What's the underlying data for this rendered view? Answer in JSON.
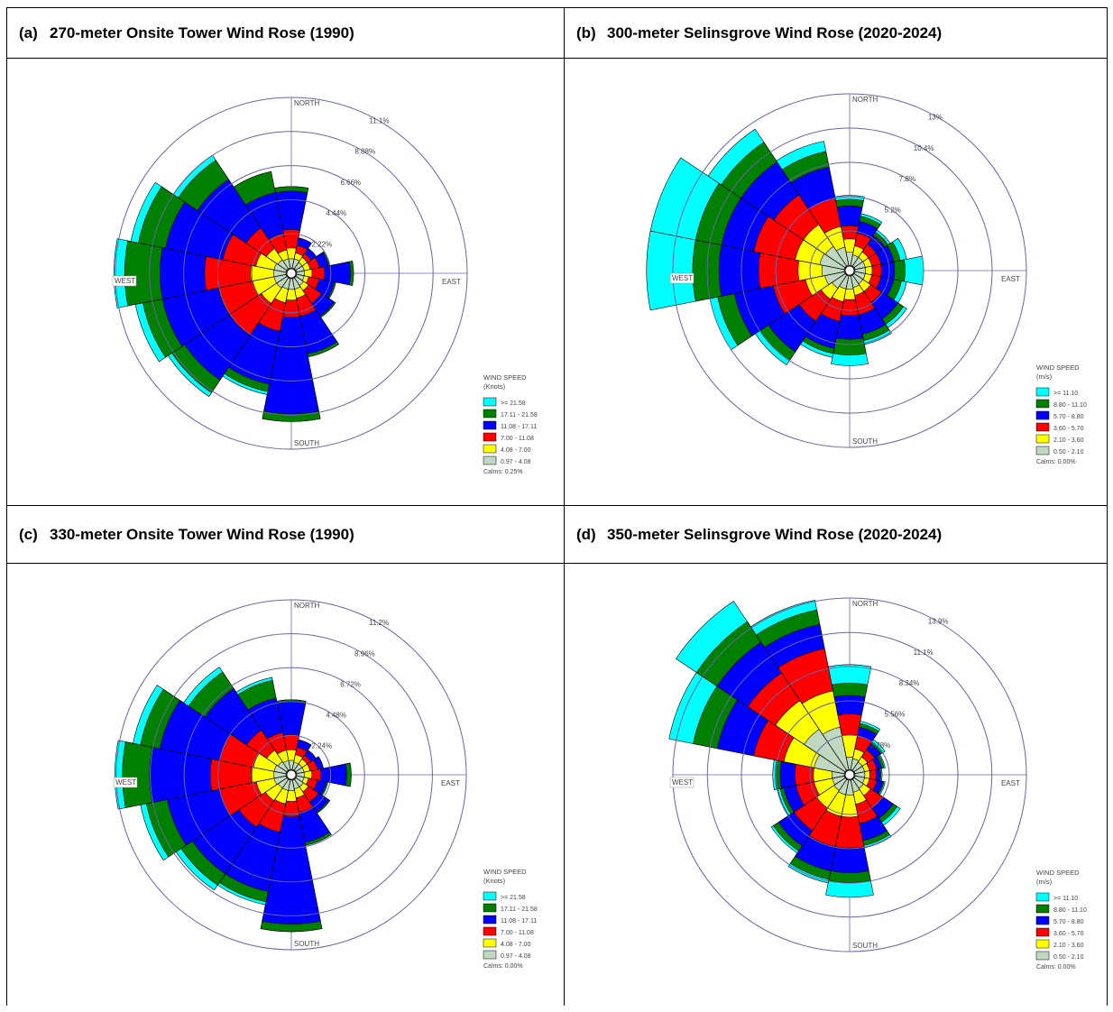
{
  "panels": [
    {
      "letter": "(a)",
      "title": "270-meter Onsite Tower Wind Rose (1990)"
    },
    {
      "letter": "(b)",
      "title": "300-meter Selinsgrove Wind Rose (2020-2024)"
    },
    {
      "letter": "(c)",
      "title": "330-meter Onsite Tower Wind Rose (1990)"
    },
    {
      "letter": "(d)",
      "title": "350-meter Selinsgrove Wind Rose (2020-2024)"
    }
  ],
  "colors": {
    "bins": [
      "#c0d8c0",
      "#ffff00",
      "#ff0000",
      "#0000ff",
      "#008000",
      "#00ffff"
    ],
    "grid": "#6666aa",
    "label": "#444444"
  },
  "chart_data": [
    {
      "type": "windrose",
      "panel": "(a)",
      "direction_labels": [
        "NORTH",
        "EAST",
        "SOUTH",
        "WEST"
      ],
      "ring_values": [
        2.22,
        4.44,
        6.66,
        8.88,
        11.1
      ],
      "ring_labels": [
        "2.22%",
        "4.44%",
        "6.66%",
        "8.88%",
        "11.1%"
      ],
      "legend_title": [
        "WIND SPEED",
        "(Knots)"
      ],
      "legend_entries": [
        ">= 21.58",
        "17.11 - 21.58",
        "11.08 - 17.11",
        "7.00 - 11.08",
        "4.08 - 7.00",
        "0.97 - 4.08"
      ],
      "calms": "Calms: 0.25%",
      "directions_deg": [
        0,
        22.5,
        45,
        67.5,
        90,
        112.5,
        135,
        157.5,
        180,
        202.5,
        225,
        247.5,
        270,
        292.5,
        315,
        337.5
      ],
      "cumulative_percent": [
        [
          0.6,
          1.3,
          2.5,
          5.0,
          5.3,
          5.3
        ],
        [
          0.6,
          1.0,
          1.5,
          2.0,
          2.0,
          2.0
        ],
        [
          0.5,
          0.9,
          1.2,
          1.6,
          1.6,
          1.6
        ],
        [
          0.5,
          0.9,
          1.5,
          2.1,
          2.2,
          2.2
        ],
        [
          0.5,
          1.0,
          1.8,
          3.5,
          3.7,
          3.7
        ],
        [
          0.5,
          0.8,
          1.5,
          2.5,
          2.6,
          2.6
        ],
        [
          0.6,
          1.0,
          2.0,
          3.0,
          3.1,
          3.1
        ],
        [
          0.7,
          1.3,
          2.5,
          5.0,
          5.2,
          5.2
        ],
        [
          0.7,
          1.4,
          2.5,
          8.8,
          9.3,
          9.3
        ],
        [
          0.7,
          1.6,
          3.5,
          7.0,
          7.5,
          7.7
        ],
        [
          0.8,
          2.0,
          4.5,
          8.0,
          9.0,
          9.3
        ],
        [
          0.8,
          2.2,
          4.5,
          8.2,
          9.5,
          10.0
        ],
        [
          0.8,
          2.3,
          5.3,
          8.2,
          10.5,
          11.2
        ],
        [
          0.8,
          2.0,
          4.2,
          8.0,
          9.8,
          10.3
        ],
        [
          0.7,
          1.6,
          3.2,
          7.0,
          8.5,
          8.9
        ],
        [
          0.6,
          1.2,
          2.3,
          5.0,
          6.4,
          6.4
        ]
      ]
    },
    {
      "type": "windrose",
      "panel": "(b)",
      "direction_labels": [
        "NORTH",
        "EAST",
        "SOUTH",
        "WEST"
      ],
      "ring_values": [
        2.6,
        5.2,
        7.8,
        10.4,
        13
      ],
      "ring_labels": [
        "2.6%",
        "5.2%",
        "7.8%",
        "10.4%",
        "13%"
      ],
      "legend_title": [
        "WIND SPEED",
        "(m/s)"
      ],
      "legend_entries": [
        ">= 11.10",
        "8.80 - 11.10",
        "5.70 - 8.80",
        "3.60 - 5.70",
        "2.10 - 3.60",
        "0.50 - 2.10"
      ],
      "calms": "Calms: 0.00%",
      "directions_deg": [
        0,
        22.5,
        45,
        67.5,
        90,
        112.5,
        135,
        157.5,
        180,
        202.5,
        225,
        247.5,
        270,
        292.5,
        315,
        337.5
      ],
      "cumulative_percent": [
        [
          1.0,
          2.0,
          3.0,
          4.5,
          5.0,
          5.3
        ],
        [
          0.8,
          1.5,
          2.5,
          3.4,
          3.8,
          4.0
        ],
        [
          0.8,
          1.3,
          2.0,
          2.8,
          3.1,
          3.3
        ],
        [
          0.8,
          1.3,
          2.0,
          3.0,
          3.5,
          4.0
        ],
        [
          0.8,
          1.3,
          2.0,
          3.0,
          3.8,
          5.2
        ],
        [
          0.8,
          1.3,
          2.0,
          3.0,
          3.6,
          4.0
        ],
        [
          0.8,
          1.5,
          2.5,
          4.0,
          4.5,
          4.8
        ],
        [
          0.9,
          1.5,
          3.0,
          4.5,
          5.0,
          5.3
        ],
        [
          1.0,
          1.8,
          3.0,
          4.8,
          6.0,
          6.8
        ],
        [
          1.0,
          2.0,
          3.5,
          5.6,
          6.0,
          6.3
        ],
        [
          1.2,
          2.2,
          4.2,
          7.0,
          7.8,
          8.2
        ],
        [
          1.5,
          3.0,
          5.5,
          8.5,
          9.8,
          10.4
        ],
        [
          1.7,
          3.5,
          6.5,
          9.5,
          11.5,
          15.0
        ],
        [
          1.9,
          3.8,
          7.0,
          9.5,
          11.5,
          15.0
        ],
        [
          1.8,
          3.8,
          6.5,
          9.5,
          11.3,
          12.5
        ],
        [
          1.4,
          3.0,
          5.2,
          7.6,
          8.8,
          9.6
        ]
      ]
    },
    {
      "type": "windrose",
      "panel": "(c)",
      "direction_labels": [
        "NORTH",
        "EAST",
        "SOUTH",
        "WEST"
      ],
      "ring_values": [
        2.24,
        4.48,
        6.72,
        8.96,
        11.2
      ],
      "ring_labels": [
        "2.24%",
        "4.48%",
        "6.72%",
        "8.96%",
        "11.2%"
      ],
      "legend_title": [
        "WIND SPEED",
        "(Knots)"
      ],
      "legend_entries": [
        ">= 21.58",
        "17.11 - 21.58",
        "11.08 - 17.11",
        "7.00 - 11.08",
        "4.08 - 7.00",
        "0.97 - 4.08"
      ],
      "calms": "Calms: 0.00%",
      "directions_deg": [
        0,
        22.5,
        45,
        67.5,
        90,
        112.5,
        135,
        157.5,
        180,
        202.5,
        225,
        247.5,
        270,
        292.5,
        315,
        337.5
      ],
      "cumulative_percent": [
        [
          0.6,
          1.3,
          2.3,
          4.5,
          4.6,
          4.6
        ],
        [
          0.5,
          1.0,
          1.5,
          2.0,
          2.0,
          2.0
        ],
        [
          0.5,
          0.9,
          1.2,
          1.6,
          1.6,
          1.6
        ],
        [
          0.5,
          0.9,
          1.4,
          1.8,
          1.8,
          1.8
        ],
        [
          0.5,
          1.0,
          1.6,
          3.3,
          3.6,
          3.6
        ],
        [
          0.5,
          0.8,
          1.4,
          2.0,
          2.1,
          2.1
        ],
        [
          0.6,
          1.0,
          1.8,
          2.6,
          2.7,
          2.7
        ],
        [
          0.6,
          1.2,
          2.2,
          4.2,
          4.4,
          4.4
        ],
        [
          0.7,
          1.4,
          2.4,
          9.5,
          10.0,
          10.0
        ],
        [
          0.7,
          1.6,
          3.5,
          7.5,
          8.2,
          8.4
        ],
        [
          0.7,
          1.7,
          3.8,
          7.5,
          8.4,
          8.8
        ],
        [
          0.8,
          2.0,
          4.5,
          8.0,
          9.4,
          9.8
        ],
        [
          0.8,
          2.3,
          5.0,
          9.0,
          10.8,
          11.3
        ],
        [
          0.8,
          2.2,
          4.5,
          8.5,
          9.8,
          10.3
        ],
        [
          0.7,
          1.6,
          3.2,
          6.5,
          7.8,
          8.2
        ],
        [
          0.6,
          1.3,
          2.5,
          4.8,
          6.0,
          6.2
        ]
      ]
    },
    {
      "type": "windrose",
      "panel": "(d)",
      "direction_labels": [
        "NORTH",
        "EAST",
        "SOUTH",
        "WEST"
      ],
      "ring_values": [
        2.78,
        5.56,
        8.34,
        11.1,
        13.9
      ],
      "ring_labels": [
        "2.78%",
        "5.56%",
        "8.34%",
        "11.1%",
        "13.9%"
      ],
      "legend_title": [
        "WIND SPEED",
        "(m/s)"
      ],
      "legend_entries": [
        ">= 11.10",
        "8.80 - 11.10",
        "5.70 - 8.80",
        "3.60 - 5.70",
        "2.10 - 3.60",
        "0.50 - 2.10"
      ],
      "calms": "Calms: 0.00%",
      "directions_deg": [
        0,
        22.5,
        45,
        67.5,
        90,
        112.5,
        135,
        157.5,
        180,
        202.5,
        225,
        247.5,
        270,
        292.5,
        315,
        337.5
      ],
      "cumulative_percent": [
        [
          1.0,
          2.8,
          4.5,
          6.0,
          7.0,
          8.5
        ],
        [
          0.9,
          1.7,
          2.8,
          3.5,
          3.8,
          4.0
        ],
        [
          0.8,
          1.3,
          2.0,
          2.6,
          2.8,
          3.0
        ],
        [
          0.8,
          1.2,
          1.8,
          2.2,
          2.4,
          2.5
        ],
        [
          0.8,
          1.2,
          1.7,
          2.0,
          2.1,
          2.2
        ],
        [
          0.8,
          1.2,
          1.8,
          2.3,
          2.4,
          2.5
        ],
        [
          0.9,
          1.6,
          2.8,
          3.8,
          4.2,
          4.5
        ],
        [
          1.0,
          2.0,
          3.6,
          5.0,
          5.4,
          5.6
        ],
        [
          1.2,
          3.0,
          5.5,
          7.5,
          8.3,
          9.5
        ],
        [
          1.2,
          3.0,
          5.5,
          7.5,
          8.2,
          8.5
        ],
        [
          1.1,
          2.8,
          5.0,
          6.5,
          7.0,
          7.2
        ],
        [
          1.0,
          2.5,
          4.0,
          5.0,
          5.3,
          5.5
        ],
        [
          1.0,
          2.5,
          4.0,
          5.2,
          5.6,
          5.8
        ],
        [
          2.5,
          5.0,
          7.5,
          10.5,
          12.5,
          14.5
        ],
        [
          4.0,
          6.8,
          9.5,
          12.5,
          14.5,
          16.5
        ],
        [
          3.5,
          6.5,
          10.0,
          12.0,
          13.2,
          14.0
        ]
      ]
    }
  ]
}
